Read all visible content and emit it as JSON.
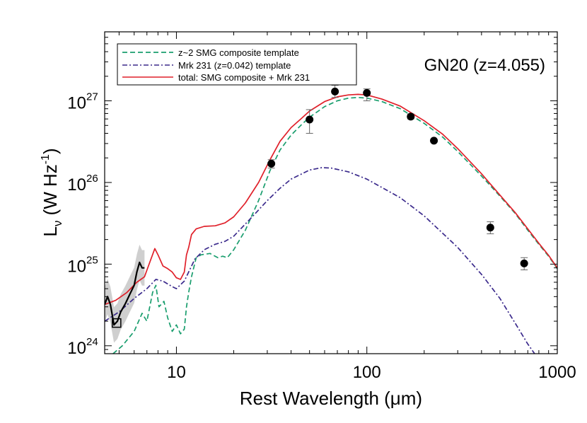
{
  "chart_data": {
    "type": "line",
    "title": "",
    "annotation": "GN20 (z=4.055)",
    "xlabel": "Rest Wavelength (μm)",
    "ylabel": {
      "main": "L",
      "sub": "ν",
      "unit": " (W Hz",
      "unit_exp": "-1",
      "close": ")"
    },
    "xscale": "log",
    "yscale": "log",
    "xlim": [
      4.2,
      1000
    ],
    "ylim": [
      8e+23,
      7e+27
    ],
    "xtick_labels": [
      {
        "value": 10,
        "label": "10"
      },
      {
        "value": 100,
        "label": "100"
      },
      {
        "value": 1000,
        "label": "1000"
      }
    ],
    "ytick_labels": [
      {
        "value": 1e+24,
        "base": "10",
        "exp": "24"
      },
      {
        "value": 1e+25,
        "base": "10",
        "exp": "25"
      },
      {
        "value": 1e+26,
        "base": "10",
        "exp": "26"
      },
      {
        "value": 1e+27,
        "base": "10",
        "exp": "27"
      }
    ],
    "legend": {
      "position": "top-left",
      "entries": [
        {
          "label": "z~2 SMG composite template",
          "color": "#1a9e6e",
          "style": "dashed"
        },
        {
          "label": "Mrk 231 (z=0.042) template",
          "color": "#3b2a8c",
          "style": "dashdot"
        },
        {
          "label": "total: SMG composite + Mrk 231",
          "color": "#e0202a",
          "style": "solid"
        }
      ]
    },
    "series": [
      {
        "name": "z~2 SMG composite template",
        "color": "#1a9e6e",
        "style": "dashed",
        "points": [
          [
            4.65,
            8e+23
          ],
          [
            5.2,
            1e+24
          ],
          [
            6.0,
            1.5e+24
          ],
          [
            6.6,
            2.5e+24
          ],
          [
            7.0,
            2e+24
          ],
          [
            7.5,
            4.5e+24
          ],
          [
            7.8,
            5.5e+24
          ],
          [
            8.1,
            3e+24
          ],
          [
            8.6,
            3.5e+24
          ],
          [
            9.0,
            2.2e+24
          ],
          [
            9.5,
            1.5e+24
          ],
          [
            10.0,
            1.8e+24
          ],
          [
            10.5,
            1.4e+24
          ],
          [
            11.0,
            1.6e+24
          ],
          [
            11.3,
            3e+24
          ],
          [
            11.6,
            4.5e+24
          ],
          [
            12.0,
            7e+24
          ],
          [
            12.7,
            1.2e+25
          ],
          [
            13.5,
            1.3e+25
          ],
          [
            15.0,
            1.35e+25
          ],
          [
            16.5,
            1.2e+25
          ],
          [
            17.5,
            1.25e+25
          ],
          [
            18.5,
            1.2e+25
          ],
          [
            20,
            1.5e+25
          ],
          [
            23,
            2.6e+25
          ],
          [
            27,
            6e+25
          ],
          [
            31,
            1.4e+26
          ],
          [
            35,
            2.5e+26
          ],
          [
            40,
            3.8e+26
          ],
          [
            45,
            5e+26
          ],
          [
            50,
            6.3e+26
          ],
          [
            60,
            8.5e+26
          ],
          [
            70,
            1e+27
          ],
          [
            80,
            1.08e+27
          ],
          [
            90,
            1.1e+27
          ],
          [
            100,
            1.08e+27
          ],
          [
            120,
            9.8e+26
          ],
          [
            150,
            8e+26
          ],
          [
            200,
            5.3e+26
          ],
          [
            250,
            3.6e+26
          ],
          [
            300,
            2.4e+26
          ],
          [
            400,
            1.2e+26
          ],
          [
            500,
            6.8e+25
          ],
          [
            600,
            4.2e+25
          ],
          [
            700,
            2.6e+25
          ],
          [
            800,
            1.75e+25
          ],
          [
            900,
            1.25e+25
          ],
          [
            1000,
            8.8e+24
          ]
        ]
      },
      {
        "name": "Mrk 231 (z=0.042) template",
        "color": "#3b2a8c",
        "style": "dashdot",
        "points": [
          [
            4.2,
            2e+24
          ],
          [
            5.0,
            2.6e+24
          ],
          [
            6.0,
            3.8e+24
          ],
          [
            7.0,
            5e+24
          ],
          [
            7.8,
            6.5e+24
          ],
          [
            8.5,
            6.2e+24
          ],
          [
            9.5,
            5.3e+24
          ],
          [
            10.0,
            5e+24
          ],
          [
            11.0,
            6.2e+24
          ],
          [
            12.5,
            1.15e+25
          ],
          [
            14,
            1.5e+25
          ],
          [
            16,
            1.75e+25
          ],
          [
            18,
            1.9e+25
          ],
          [
            20,
            2.2e+25
          ],
          [
            25,
            3.8e+25
          ],
          [
            30,
            6e+25
          ],
          [
            35,
            8.5e+25
          ],
          [
            40,
            1.1e+26
          ],
          [
            50,
            1.42e+26
          ],
          [
            58,
            1.52e+26
          ],
          [
            65,
            1.5e+26
          ],
          [
            80,
            1.35e+26
          ],
          [
            100,
            1.1e+26
          ],
          [
            150,
            6.5e+25
          ],
          [
            200,
            3.9e+25
          ],
          [
            300,
            1.6e+25
          ],
          [
            400,
            7.5e+24
          ],
          [
            500,
            3.8e+24
          ],
          [
            600,
            1.9e+24
          ],
          [
            700,
            1.05e+24
          ],
          [
            760,
            8e+23
          ]
        ]
      },
      {
        "name": "total: SMG composite + Mrk 231",
        "color": "#e0202a",
        "style": "solid",
        "points": [
          [
            4.2,
            3.2e+24
          ],
          [
            4.8,
            3.6e+24
          ],
          [
            5.5,
            4.5e+24
          ],
          [
            6.2,
            6e+24
          ],
          [
            6.8,
            7e+24
          ],
          [
            7.3,
            1.1e+25
          ],
          [
            7.7,
            1.55e+25
          ],
          [
            8.0,
            1.3e+25
          ],
          [
            8.5,
            9.5e+24
          ],
          [
            9.0,
            8.8e+24
          ],
          [
            9.5,
            8e+24
          ],
          [
            10.0,
            6.8e+24
          ],
          [
            10.5,
            6.5e+24
          ],
          [
            11.0,
            8e+24
          ],
          [
            11.3,
            1.3e+25
          ],
          [
            11.6,
            1.6e+25
          ],
          [
            12.0,
            2.3e+25
          ],
          [
            12.7,
            2.7e+25
          ],
          [
            14,
            2.9e+25
          ],
          [
            16,
            2.95e+25
          ],
          [
            18,
            3.2e+25
          ],
          [
            20,
            3.8e+25
          ],
          [
            23,
            5.6e+25
          ],
          [
            27,
            1e+26
          ],
          [
            31,
            1.9e+26
          ],
          [
            35,
            3.2e+26
          ],
          [
            40,
            4.7e+26
          ],
          [
            45,
            6e+26
          ],
          [
            50,
            7.5e+26
          ],
          [
            60,
            9.8e+26
          ],
          [
            70,
            1.12e+27
          ],
          [
            80,
            1.18e+27
          ],
          [
            90,
            1.2e+27
          ],
          [
            100,
            1.18e+27
          ],
          [
            120,
            1.05e+27
          ],
          [
            150,
            8.6e+26
          ],
          [
            200,
            5.7e+26
          ],
          [
            250,
            3.9e+26
          ],
          [
            300,
            2.6e+26
          ],
          [
            400,
            1.28e+26
          ],
          [
            500,
            7e+25
          ],
          [
            600,
            4.3e+25
          ],
          [
            700,
            2.7e+25
          ],
          [
            800,
            1.8e+25
          ],
          [
            900,
            1.28e+25
          ],
          [
            1000,
            9e+24
          ]
        ]
      },
      {
        "name": "",
        "color": "#000000",
        "style": "solid",
        "points": [
          [
            4.2,
            3.2e+24
          ],
          [
            4.35,
            4e+24
          ],
          [
            4.5,
            3.2e+24
          ],
          [
            4.7,
            1.8e+24
          ],
          [
            4.9,
            2e+24
          ],
          [
            5.1,
            2.6e+24
          ],
          [
            5.4,
            3.3e+24
          ],
          [
            5.7,
            4.3e+24
          ],
          [
            6.0,
            5.5e+24
          ],
          [
            6.2,
            8e+24
          ],
          [
            6.4,
            1.05e+25
          ],
          [
            6.6,
            9e+24
          ],
          [
            6.8,
            9e+24
          ]
        ]
      }
    ],
    "points": [
      {
        "x": 31.5,
        "y": 1.7e+26,
        "yerr": [
          1.5e+26,
          1.9e+26
        ]
      },
      {
        "x": 50,
        "y": 5.9e+26,
        "yerr": [
          4e+26,
          7.8e+26
        ]
      },
      {
        "x": 68,
        "y": 1.3e+27,
        "yerr": [
          1.1e+27,
          1.55e+27
        ]
      },
      {
        "x": 100,
        "y": 1.25e+27,
        "yerr": [
          1e+27,
          1.4e+27
        ]
      },
      {
        "x": 170,
        "y": 6.4e+26,
        "yerr": [
          6e+26,
          6.9e+26
        ]
      },
      {
        "x": 225,
        "y": 3.25e+26,
        "yerr": [
          3.15e+26,
          3.35e+26
        ]
      },
      {
        "x": 445,
        "y": 2.8e+25,
        "yerr": [
          2.35e+25,
          3.3e+25
        ]
      },
      {
        "x": 670,
        "y": 1.02e+25,
        "yerr": [
          8.5e+24,
          1.2e+25
        ]
      }
    ],
    "upper_limit_box": {
      "x": 4.85,
      "y": 1.9e+24
    },
    "grid": false
  }
}
